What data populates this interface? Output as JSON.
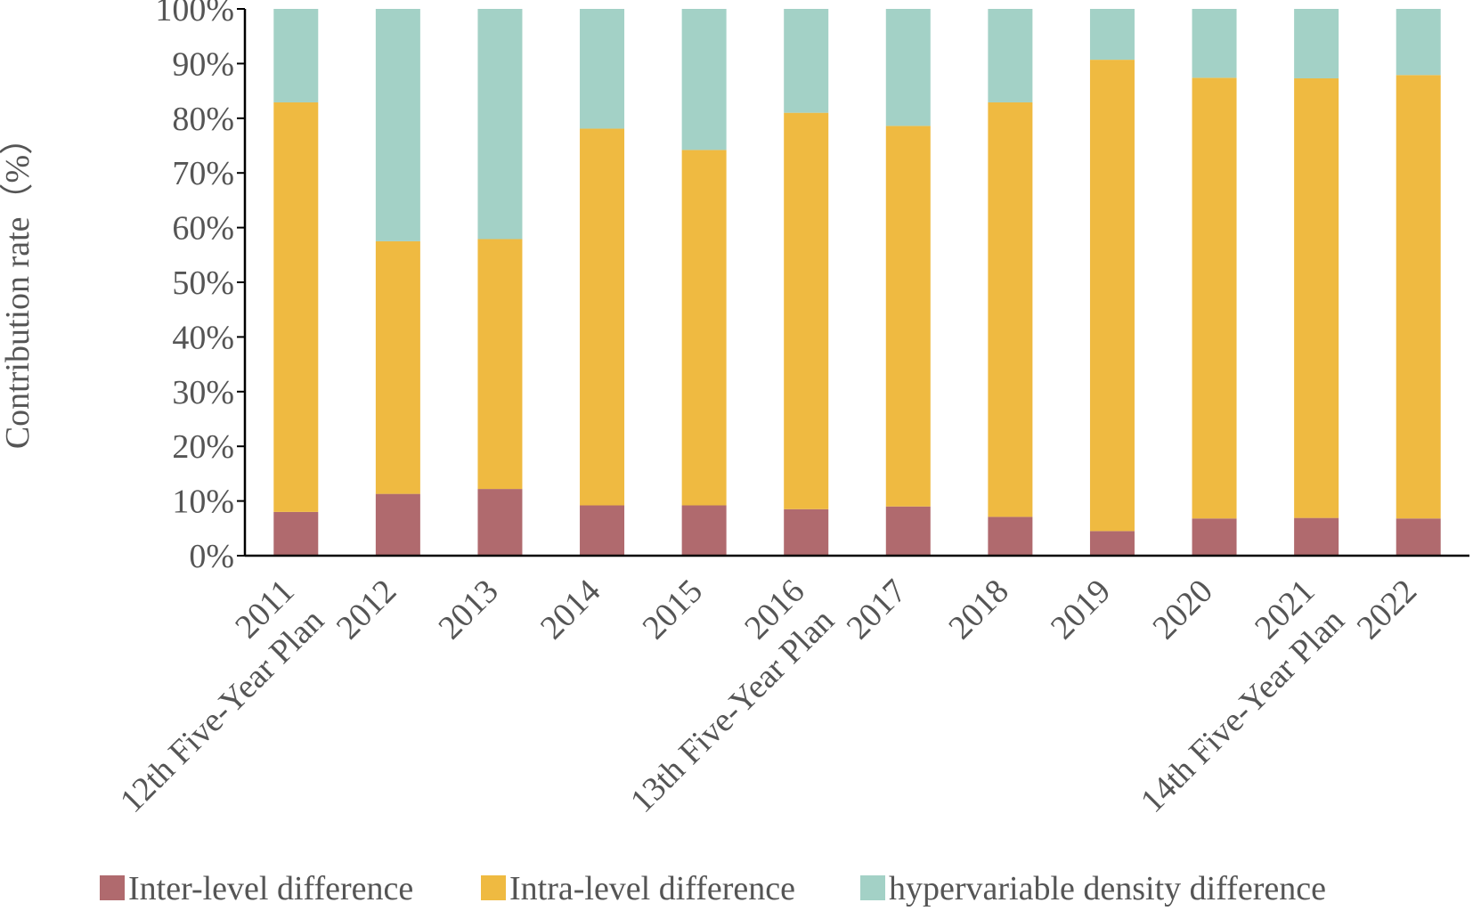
{
  "chart_data": {
    "type": "bar",
    "stacked": true,
    "percent": true,
    "title": "",
    "xlabel": "",
    "ylabel": "Contribution rate（%）",
    "ylim": [
      0,
      100
    ],
    "yticks": [
      "0%",
      "10%",
      "20%",
      "30%",
      "40%",
      "50%",
      "60%",
      "70%",
      "80%",
      "90%",
      "100%"
    ],
    "categories": [
      [
        "2011",
        "12th Five-Year Plan"
      ],
      [
        "2012"
      ],
      [
        "2013"
      ],
      [
        "2014"
      ],
      [
        "2015"
      ],
      [
        "2016",
        "13th Five-Year Plan"
      ],
      [
        "2017"
      ],
      [
        "2018"
      ],
      [
        "2019"
      ],
      [
        "2020"
      ],
      [
        "2021",
        "14th Five-Year Plan"
      ],
      [
        "2022"
      ]
    ],
    "series": [
      {
        "name": "Inter-level difference",
        "color": "#b06a6e",
        "values": [
          8.0,
          11.3,
          12.2,
          9.2,
          9.2,
          8.5,
          9.0,
          7.1,
          4.5,
          6.8,
          6.9,
          6.8
        ]
      },
      {
        "name": "Intra-level difference",
        "color": "#efba41",
        "values": [
          74.9,
          46.2,
          45.7,
          68.9,
          65.0,
          72.5,
          69.6,
          75.8,
          86.2,
          80.6,
          80.4,
          81.1
        ]
      },
      {
        "name": "hypervariable density difference",
        "color": "#a3d1c6",
        "values": [
          17.1,
          42.5,
          42.1,
          21.9,
          25.8,
          19.0,
          21.4,
          17.1,
          9.3,
          12.6,
          12.7,
          12.1
        ]
      }
    ],
    "legend_position": "bottom",
    "grid": false
  }
}
